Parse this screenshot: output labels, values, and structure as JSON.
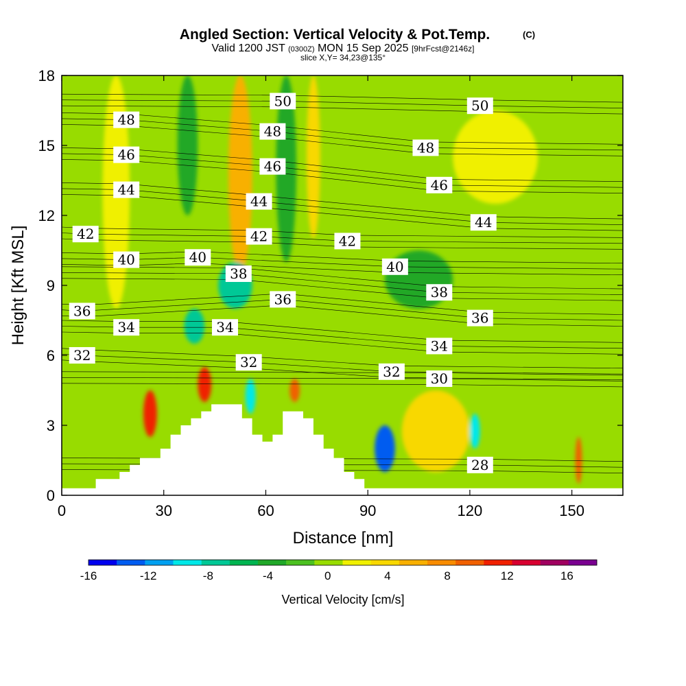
{
  "chart_data": {
    "type": "heatmap",
    "title": "Angled Section: Vertical Velocity & Pot.Temp.",
    "title_mark": "(C)",
    "subtitle": {
      "prefix": "Valid 1200 JST",
      "utc": "(0300Z)",
      "date": "MON 15 Sep 2025",
      "fcst": "[9hrFcst@2146z]"
    },
    "slice_label": "slice X,Y= 34,23@135°",
    "xlabel": "Distance [nm]",
    "ylabel": "Height [Kft MSL]",
    "xlim": [
      0,
      165
    ],
    "ylim": [
      0,
      18
    ],
    "xticks": [
      "0",
      "30",
      "60",
      "90",
      "120",
      "150"
    ],
    "yticks": [
      "0",
      "3",
      "6",
      "9",
      "12",
      "15",
      "18"
    ],
    "colorbar": {
      "label": "Vertical Velocity [cm/s]",
      "range": [
        -16,
        18
      ],
      "step": 2,
      "tick_labels": [
        "-16",
        "-12",
        "-8",
        "-4",
        "0",
        "4",
        "8",
        "12",
        "16"
      ],
      "colors": [
        "#0000ee",
        "#005cf0",
        "#00a0f0",
        "#00e8e8",
        "#00c896",
        "#00b450",
        "#20a828",
        "#4cc020",
        "#98dc00",
        "#f0f000",
        "#f8d800",
        "#f8b000",
        "#f88c00",
        "#f06000",
        "#f02000",
        "#d80030",
        "#a00060",
        "#7a0090"
      ]
    },
    "field_features": [
      {
        "name": "background",
        "value": 1
      },
      {
        "name": "updraft-left-column",
        "x": [
          12,
          20
        ],
        "y": [
          8,
          18
        ],
        "value": 3
      },
      {
        "name": "upper-right-updraft",
        "x": [
          115,
          140
        ],
        "y": [
          12.5,
          16.5
        ],
        "value": 3
      },
      {
        "name": "downdraft-column-35",
        "x": [
          34,
          40
        ],
        "y": [
          12,
          18
        ],
        "value": -4
      },
      {
        "name": "downdraft-column-65",
        "x": [
          63,
          69
        ],
        "y": [
          10,
          18
        ],
        "value": -3
      },
      {
        "name": "updraft-column-53",
        "x": [
          49,
          56
        ],
        "y": [
          9.5,
          18
        ],
        "value": 6
      },
      {
        "name": "updraft-column-74",
        "x": [
          72,
          76
        ],
        "y": [
          11,
          18
        ],
        "value": 4
      },
      {
        "name": "downdraft-core-38kft",
        "x": [
          46,
          56
        ],
        "y": [
          8,
          10
        ],
        "value": -8
      },
      {
        "name": "downdraft-core-7kft",
        "x": [
          36,
          42
        ],
        "y": [
          6.5,
          8
        ],
        "value": -8
      },
      {
        "name": "updraft-core-26",
        "x": [
          24,
          28
        ],
        "y": [
          2.5,
          4.5
        ],
        "value": 12
      },
      {
        "name": "updraft-core-42",
        "x": [
          40,
          44
        ],
        "y": [
          4,
          5.5
        ],
        "value": 12
      },
      {
        "name": "updraft-core-69",
        "x": [
          67,
          70
        ],
        "y": [
          4,
          5
        ],
        "value": 10
      },
      {
        "name": "downdraft-core-95",
        "x": [
          92,
          98
        ],
        "y": [
          1,
          3
        ],
        "value": -14
      },
      {
        "name": "downdraft-core-56",
        "x": [
          54,
          57
        ],
        "y": [
          3.5,
          5
        ],
        "value": -9
      },
      {
        "name": "downdraft-core-122",
        "x": [
          120,
          123
        ],
        "y": [
          2,
          3.5
        ],
        "value": -10
      },
      {
        "name": "updraft-core-152",
        "x": [
          151,
          153
        ],
        "y": [
          0.5,
          2.5
        ],
        "value": 11
      },
      {
        "name": "lower-right-updraft",
        "x": [
          100,
          120
        ],
        "y": [
          1,
          4.5
        ],
        "value": 5
      },
      {
        "name": "downdraft-region-108",
        "x": [
          95,
          115
        ],
        "y": [
          8,
          10.5
        ],
        "value": -3
      }
    ],
    "terrain_kft": [
      {
        "x": 0,
        "h": 0.3
      },
      {
        "x": 10,
        "h": 0.7
      },
      {
        "x": 17,
        "h": 1.0
      },
      {
        "x": 20,
        "h": 1.3
      },
      {
        "x": 23,
        "h": 1.6
      },
      {
        "x": 29,
        "h": 2.0
      },
      {
        "x": 32,
        "h": 2.6
      },
      {
        "x": 35,
        "h": 3.0
      },
      {
        "x": 38,
        "h": 3.3
      },
      {
        "x": 41,
        "h": 3.6
      },
      {
        "x": 44,
        "h": 3.9
      },
      {
        "x": 50,
        "h": 3.9
      },
      {
        "x": 53,
        "h": 3.3
      },
      {
        "x": 56,
        "h": 2.6
      },
      {
        "x": 59,
        "h": 2.3
      },
      {
        "x": 62,
        "h": 2.6
      },
      {
        "x": 65,
        "h": 3.6
      },
      {
        "x": 71,
        "h": 3.3
      },
      {
        "x": 74,
        "h": 2.6
      },
      {
        "x": 77,
        "h": 2.0
      },
      {
        "x": 80,
        "h": 1.6
      },
      {
        "x": 83,
        "h": 1.0
      },
      {
        "x": 86,
        "h": 0.7
      },
      {
        "x": 89,
        "h": 0.3
      },
      {
        "x": 165,
        "h": 0.3
      }
    ],
    "contour_labels": [
      {
        "text": "50",
        "x": 65,
        "y": 16.9
      },
      {
        "text": "50",
        "x": 123,
        "y": 16.7
      },
      {
        "text": "48",
        "x": 19,
        "y": 16.1
      },
      {
        "text": "48",
        "x": 62,
        "y": 15.6
      },
      {
        "text": "48",
        "x": 107,
        "y": 14.9
      },
      {
        "text": "46",
        "x": 19,
        "y": 14.6
      },
      {
        "text": "46",
        "x": 62,
        "y": 14.1
      },
      {
        "text": "46",
        "x": 111,
        "y": 13.3
      },
      {
        "text": "44",
        "x": 19,
        "y": 13.1
      },
      {
        "text": "44",
        "x": 58,
        "y": 12.6
      },
      {
        "text": "44",
        "x": 124,
        "y": 11.7
      },
      {
        "text": "42",
        "x": 7,
        "y": 11.2
      },
      {
        "text": "42",
        "x": 58,
        "y": 11.1
      },
      {
        "text": "42",
        "x": 84,
        "y": 10.9
      },
      {
        "text": "40",
        "x": 19,
        "y": 10.1
      },
      {
        "text": "40",
        "x": 40,
        "y": 10.2
      },
      {
        "text": "40",
        "x": 98,
        "y": 9.8
      },
      {
        "text": "38",
        "x": 52,
        "y": 9.5
      },
      {
        "text": "38",
        "x": 111,
        "y": 8.7
      },
      {
        "text": "36",
        "x": 6,
        "y": 7.9
      },
      {
        "text": "36",
        "x": 65,
        "y": 8.4
      },
      {
        "text": "36",
        "x": 123,
        "y": 7.6
      },
      {
        "text": "34",
        "x": 19,
        "y": 7.2
      },
      {
        "text": "34",
        "x": 48,
        "y": 7.2
      },
      {
        "text": "34",
        "x": 111,
        "y": 6.4
      },
      {
        "text": "32",
        "x": 6,
        "y": 6.0
      },
      {
        "text": "32",
        "x": 55,
        "y": 5.7
      },
      {
        "text": "32",
        "x": 97,
        "y": 5.3
      },
      {
        "text": "30",
        "x": 111,
        "y": 5.0
      },
      {
        "text": "28",
        "x": 123,
        "y": 1.3
      }
    ]
  }
}
